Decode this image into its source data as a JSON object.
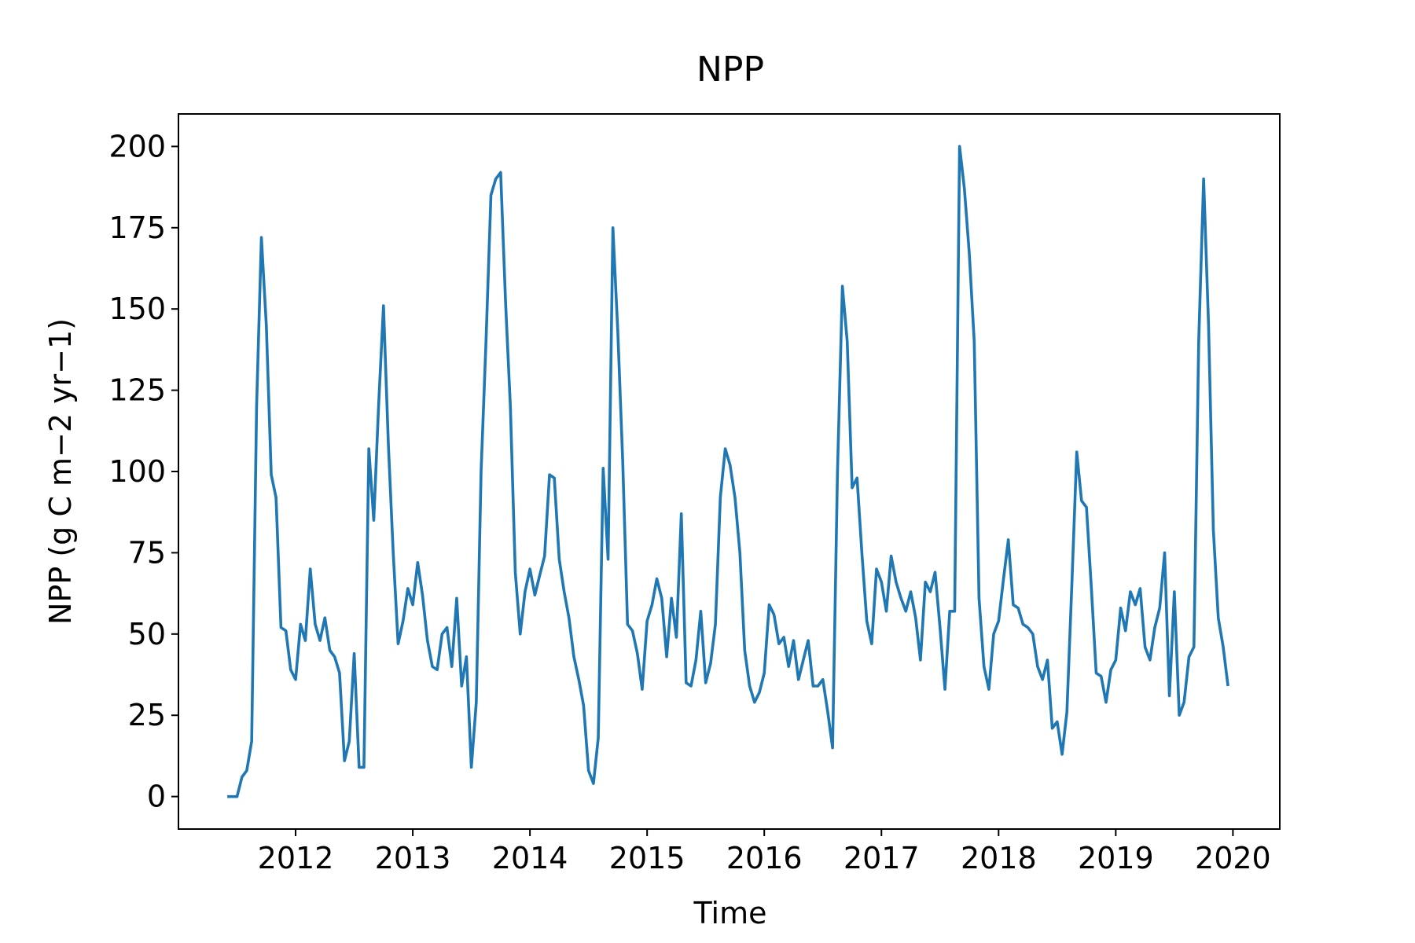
{
  "chart_data": {
    "type": "line",
    "title": "NPP",
    "xlabel": "Time",
    "ylabel": "NPP (g C m−2 yr−1)",
    "xlim": [
      2011.0,
      2020.4
    ],
    "ylim": [
      -10,
      210
    ],
    "x_ticks": [
      {
        "value": 2012,
        "label": "2012"
      },
      {
        "value": 2013,
        "label": "2013"
      },
      {
        "value": 2014,
        "label": "2014"
      },
      {
        "value": 2015,
        "label": "2015"
      },
      {
        "value": 2016,
        "label": "2016"
      },
      {
        "value": 2017,
        "label": "2017"
      },
      {
        "value": 2018,
        "label": "2018"
      },
      {
        "value": 2019,
        "label": "2019"
      },
      {
        "value": 2020,
        "label": "2020"
      }
    ],
    "y_ticks": [
      {
        "value": 0,
        "label": "0"
      },
      {
        "value": 25,
        "label": "25"
      },
      {
        "value": 50,
        "label": "50"
      },
      {
        "value": 75,
        "label": "75"
      },
      {
        "value": 100,
        "label": "100"
      },
      {
        "value": 125,
        "label": "125"
      },
      {
        "value": 150,
        "label": "150"
      },
      {
        "value": 175,
        "label": "175"
      },
      {
        "value": 200,
        "label": "200"
      }
    ],
    "grid": false,
    "series": [
      {
        "color": "#1f77b4",
        "points": [
          [
            2011.417,
            0
          ],
          [
            2011.458,
            0
          ],
          [
            2011.5,
            0
          ],
          [
            2011.542,
            6
          ],
          [
            2011.583,
            8
          ],
          [
            2011.625,
            17
          ],
          [
            2011.667,
            120
          ],
          [
            2011.708,
            172
          ],
          [
            2011.75,
            145
          ],
          [
            2011.792,
            99
          ],
          [
            2011.833,
            92
          ],
          [
            2011.875,
            52
          ],
          [
            2011.917,
            51
          ],
          [
            2011.958,
            39
          ],
          [
            2012.0,
            36
          ],
          [
            2012.042,
            53
          ],
          [
            2012.083,
            48
          ],
          [
            2012.125,
            70
          ],
          [
            2012.167,
            53
          ],
          [
            2012.208,
            48
          ],
          [
            2012.25,
            55
          ],
          [
            2012.292,
            45
          ],
          [
            2012.333,
            43
          ],
          [
            2012.375,
            38
          ],
          [
            2012.417,
            11
          ],
          [
            2012.458,
            17
          ],
          [
            2012.5,
            44
          ],
          [
            2012.542,
            9
          ],
          [
            2012.583,
            9
          ],
          [
            2012.625,
            107
          ],
          [
            2012.667,
            85
          ],
          [
            2012.708,
            120
          ],
          [
            2012.75,
            151
          ],
          [
            2012.792,
            108
          ],
          [
            2012.833,
            75
          ],
          [
            2012.875,
            47
          ],
          [
            2012.917,
            54
          ],
          [
            2012.958,
            64
          ],
          [
            2013.0,
            59
          ],
          [
            2013.042,
            72
          ],
          [
            2013.083,
            62
          ],
          [
            2013.125,
            48
          ],
          [
            2013.167,
            40
          ],
          [
            2013.208,
            39
          ],
          [
            2013.25,
            50
          ],
          [
            2013.292,
            52
          ],
          [
            2013.333,
            40
          ],
          [
            2013.375,
            61
          ],
          [
            2013.417,
            34
          ],
          [
            2013.458,
            43
          ],
          [
            2013.5,
            9
          ],
          [
            2013.542,
            29
          ],
          [
            2013.583,
            100
          ],
          [
            2013.625,
            140
          ],
          [
            2013.667,
            185
          ],
          [
            2013.708,
            190
          ],
          [
            2013.75,
            192
          ],
          [
            2013.792,
            152
          ],
          [
            2013.833,
            120
          ],
          [
            2013.875,
            69
          ],
          [
            2013.917,
            50
          ],
          [
            2013.958,
            63
          ],
          [
            2014.0,
            70
          ],
          [
            2014.042,
            62
          ],
          [
            2014.083,
            68
          ],
          [
            2014.125,
            74
          ],
          [
            2014.167,
            99
          ],
          [
            2014.208,
            98
          ],
          [
            2014.25,
            73
          ],
          [
            2014.292,
            63
          ],
          [
            2014.333,
            55
          ],
          [
            2014.375,
            43
          ],
          [
            2014.417,
            36
          ],
          [
            2014.458,
            28
          ],
          [
            2014.5,
            8
          ],
          [
            2014.542,
            4
          ],
          [
            2014.583,
            18
          ],
          [
            2014.625,
            101
          ],
          [
            2014.667,
            73
          ],
          [
            2014.708,
            175
          ],
          [
            2014.75,
            143
          ],
          [
            2014.792,
            103
          ],
          [
            2014.833,
            53
          ],
          [
            2014.875,
            51
          ],
          [
            2014.917,
            44
          ],
          [
            2014.958,
            33
          ],
          [
            2015.0,
            54
          ],
          [
            2015.042,
            59
          ],
          [
            2015.083,
            67
          ],
          [
            2015.125,
            61
          ],
          [
            2015.167,
            43
          ],
          [
            2015.208,
            61
          ],
          [
            2015.25,
            49
          ],
          [
            2015.292,
            87
          ],
          [
            2015.333,
            35
          ],
          [
            2015.375,
            34
          ],
          [
            2015.417,
            42
          ],
          [
            2015.458,
            57
          ],
          [
            2015.5,
            35
          ],
          [
            2015.542,
            41
          ],
          [
            2015.583,
            53
          ],
          [
            2015.625,
            92
          ],
          [
            2015.667,
            107
          ],
          [
            2015.708,
            102
          ],
          [
            2015.75,
            92
          ],
          [
            2015.792,
            75
          ],
          [
            2015.833,
            45
          ],
          [
            2015.875,
            34
          ],
          [
            2015.917,
            29
          ],
          [
            2015.958,
            32
          ],
          [
            2016.0,
            38
          ],
          [
            2016.042,
            59
          ],
          [
            2016.083,
            56
          ],
          [
            2016.125,
            47
          ],
          [
            2016.167,
            49
          ],
          [
            2016.208,
            40
          ],
          [
            2016.25,
            48
          ],
          [
            2016.292,
            36
          ],
          [
            2016.333,
            42
          ],
          [
            2016.375,
            48
          ],
          [
            2016.417,
            34
          ],
          [
            2016.458,
            34
          ],
          [
            2016.5,
            36
          ],
          [
            2016.542,
            26
          ],
          [
            2016.583,
            15
          ],
          [
            2016.625,
            100
          ],
          [
            2016.667,
            157
          ],
          [
            2016.708,
            140
          ],
          [
            2016.75,
            95
          ],
          [
            2016.792,
            98
          ],
          [
            2016.833,
            75
          ],
          [
            2016.875,
            54
          ],
          [
            2016.917,
            47
          ],
          [
            2016.958,
            70
          ],
          [
            2017.0,
            66
          ],
          [
            2017.042,
            57
          ],
          [
            2017.083,
            74
          ],
          [
            2017.125,
            66
          ],
          [
            2017.167,
            61
          ],
          [
            2017.208,
            57
          ],
          [
            2017.25,
            63
          ],
          [
            2017.292,
            55
          ],
          [
            2017.333,
            42
          ],
          [
            2017.375,
            66
          ],
          [
            2017.417,
            63
          ],
          [
            2017.458,
            69
          ],
          [
            2017.5,
            52
          ],
          [
            2017.542,
            33
          ],
          [
            2017.583,
            57
          ],
          [
            2017.625,
            57
          ],
          [
            2017.667,
            200
          ],
          [
            2017.708,
            187
          ],
          [
            2017.75,
            167
          ],
          [
            2017.792,
            140
          ],
          [
            2017.833,
            61
          ],
          [
            2017.875,
            40
          ],
          [
            2017.917,
            33
          ],
          [
            2017.958,
            50
          ],
          [
            2018.0,
            54
          ],
          [
            2018.042,
            67
          ],
          [
            2018.083,
            79
          ],
          [
            2018.125,
            59
          ],
          [
            2018.167,
            58
          ],
          [
            2018.208,
            53
          ],
          [
            2018.25,
            52
          ],
          [
            2018.292,
            50
          ],
          [
            2018.333,
            40
          ],
          [
            2018.375,
            36
          ],
          [
            2018.417,
            42
          ],
          [
            2018.458,
            21
          ],
          [
            2018.5,
            23
          ],
          [
            2018.542,
            13
          ],
          [
            2018.583,
            26
          ],
          [
            2018.625,
            65
          ],
          [
            2018.667,
            106
          ],
          [
            2018.708,
            91
          ],
          [
            2018.75,
            89
          ],
          [
            2018.792,
            64
          ],
          [
            2018.833,
            38
          ],
          [
            2018.875,
            37
          ],
          [
            2018.917,
            29
          ],
          [
            2018.958,
            39
          ],
          [
            2019.0,
            42
          ],
          [
            2019.042,
            58
          ],
          [
            2019.083,
            51
          ],
          [
            2019.125,
            63
          ],
          [
            2019.167,
            59
          ],
          [
            2019.208,
            64
          ],
          [
            2019.25,
            46
          ],
          [
            2019.292,
            42
          ],
          [
            2019.333,
            52
          ],
          [
            2019.375,
            58
          ],
          [
            2019.417,
            75
          ],
          [
            2019.458,
            31
          ],
          [
            2019.5,
            63
          ],
          [
            2019.542,
            25
          ],
          [
            2019.583,
            29
          ],
          [
            2019.625,
            43
          ],
          [
            2019.667,
            46
          ],
          [
            2019.708,
            140
          ],
          [
            2019.75,
            190
          ],
          [
            2019.792,
            145
          ],
          [
            2019.833,
            82
          ],
          [
            2019.875,
            55
          ],
          [
            2019.917,
            46
          ],
          [
            2019.958,
            34
          ]
        ]
      }
    ]
  }
}
